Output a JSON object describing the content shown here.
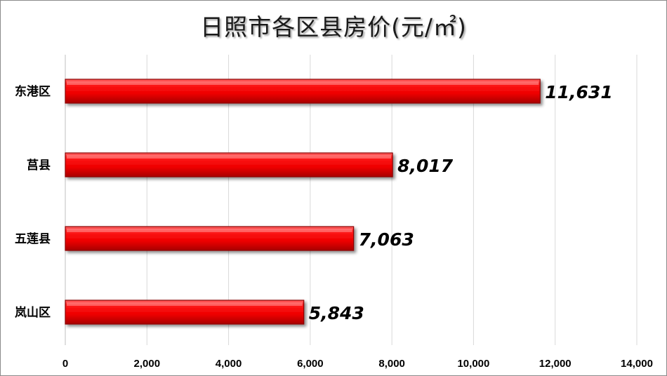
{
  "chart_data": {
    "type": "bar",
    "orientation": "horizontal",
    "title": "日照市各区县房价(元/㎡)",
    "categories": [
      "东港区",
      "莒县",
      "五莲县",
      "岚山区"
    ],
    "values": [
      11631,
      8017,
      7063,
      5843
    ],
    "data_labels": [
      "11,631",
      "8,017",
      "7,063",
      "5,843"
    ],
    "xlim": [
      0,
      14000
    ],
    "x_ticks": [
      0,
      2000,
      4000,
      6000,
      8000,
      10000,
      12000,
      14000
    ],
    "x_tick_labels": [
      "0",
      "2,000",
      "4,000",
      "6,000",
      "8,000",
      "10,000",
      "12,000",
      "14,000"
    ],
    "xlabel": "",
    "ylabel": "",
    "grid": "vertical",
    "legend": "none",
    "bar_color": "#ff0000",
    "bar_edge_color": "#8b0000"
  }
}
